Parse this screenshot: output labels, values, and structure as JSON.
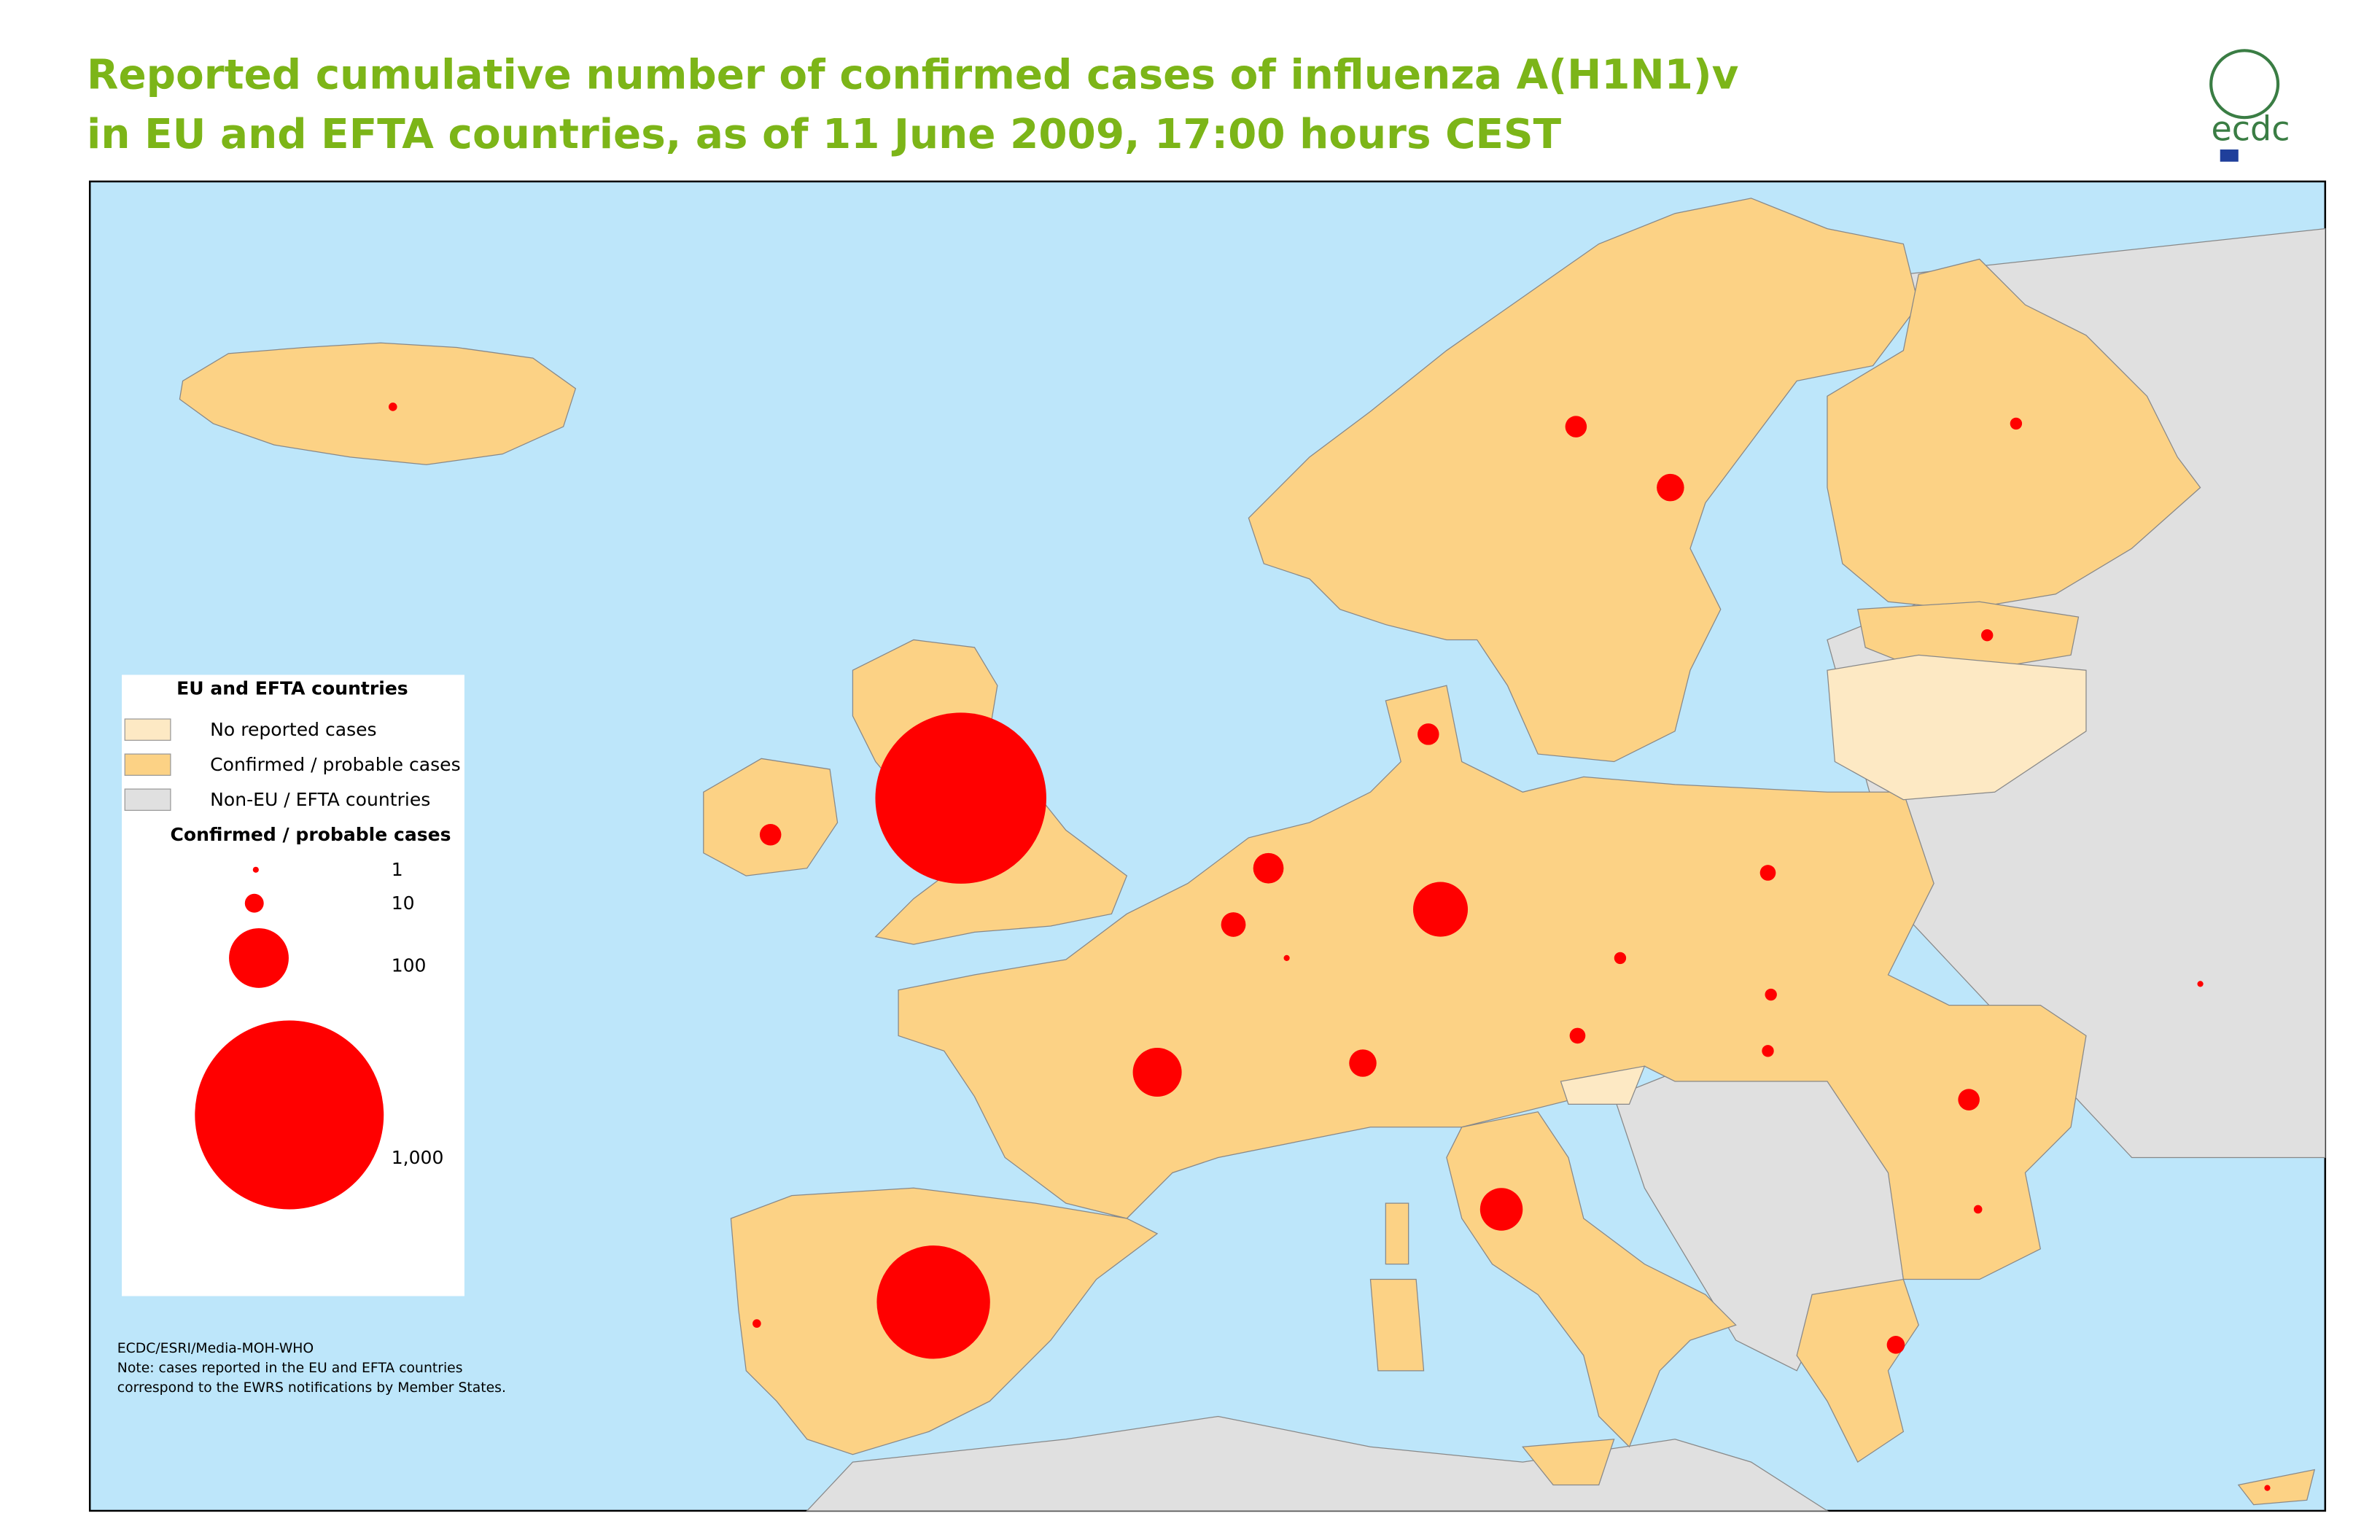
{
  "title": [
    "Reported cumulative number of confirmed cases of  influenza A(H1N1)v",
    "in EU and EFTA countries, as of 11 June 2009,  17:00 hours CEST"
  ],
  "logo_text": "ecdc",
  "legend": {
    "title": "EU and EFTA countries",
    "areas": [
      {
        "label": "No reported cases",
        "color": "#fde9c4"
      },
      {
        "label": "Confirmed / probable cases",
        "color": "#fcd285"
      },
      {
        "label": "Non-EU / EFTA countries",
        "color": "#e0e0e0"
      }
    ],
    "size_title": "Confirmed / probable cases",
    "sizes": [
      1,
      10,
      100,
      {
        "value": 1000,
        "label": "1,000"
      }
    ],
    "bubble_color": "#ff0000"
  },
  "map": {
    "cases": [
      820,
      360,
      84,
      67,
      51,
      26,
      21,
      17,
      13,
      21,
      13,
      13,
      9,
      13,
      7,
      7,
      4,
      4,
      4,
      2,
      4,
      4,
      2,
      2,
      1,
      1,
      1
    ]
  },
  "source": [
    "ECDC/ESRI/Media-MOH-WHO",
    "Note: cases reported in the EU and EFTA countries",
    "correspond to the EWRS notifications by Member States."
  ]
}
